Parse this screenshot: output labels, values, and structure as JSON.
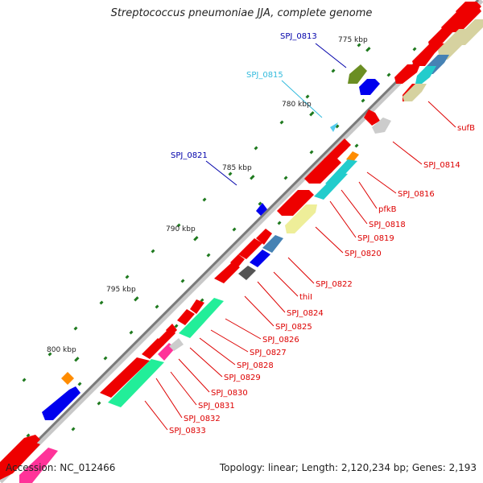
{
  "title": "Streptococcus pneumoniae JJA, complete genome",
  "accession_label": "Accession: NC_012466",
  "summary_label": "Topology: linear; Length: 2,120,234 bp; Genes: 2,193",
  "colors": {
    "backbone": "#7a7a7a",
    "tick": "#1f7a1f",
    "label_red": "#dd0000",
    "label_blue": "#0000aa",
    "label_cyan": "#33bbdd",
    "gene_red": "#ee0000",
    "gene_blue": "#0000ee",
    "gene_cyan": "#22cccc",
    "gene_khaki": "#d6d2a0",
    "gene_olive": "#6b8e23",
    "gene_orange": "#ff8c00",
    "gene_mint": "#22ee99",
    "gene_pink": "#ff3399",
    "gene_gray": "#cccccc",
    "gene_darkgray": "#555555",
    "gene_steelblue": "#4682b4",
    "gene_sky": "#55ccee"
  },
  "scale_labels": [
    "775 kbp",
    "780 kbp",
    "785 kbp",
    "790 kbp",
    "795 kbp",
    "800 kbp"
  ],
  "gene_labels_right": [
    "sufB",
    "SPJ_0814",
    "SPJ_0816",
    "pfkB",
    "SPJ_0818",
    "SPJ_0819",
    "SPJ_0820",
    "SPJ_0822",
    "thiI",
    "SPJ_0824",
    "SPJ_0825",
    "SPJ_0826",
    "SPJ_0827",
    "SPJ_0828",
    "SPJ_0829",
    "SPJ_0830",
    "SPJ_0831",
    "SPJ_0832",
    "SPJ_0833"
  ],
  "gene_labels_left": [
    "SPJ_0813",
    "SPJ_0815",
    "SPJ_0821"
  ]
}
